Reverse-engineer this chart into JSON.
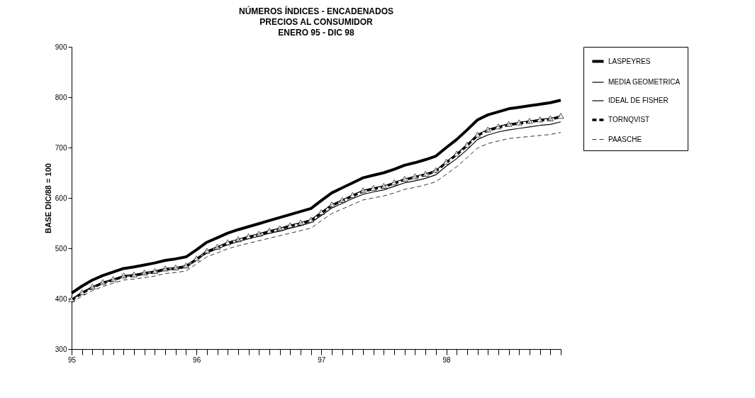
{
  "chart_data": {
    "type": "line",
    "title": "NÚMEROS ÍNDICES - ENCADENADOS\nPRECIOS AL CONSUMIDOR\nENERO 95 - DIC 98",
    "ylabel": "BASE DIC/88 = 100",
    "categories": [
      "95",
      null,
      null,
      null,
      null,
      null,
      null,
      null,
      null,
      null,
      null,
      null,
      "96",
      null,
      null,
      null,
      null,
      null,
      null,
      null,
      null,
      null,
      null,
      null,
      "97",
      null,
      null,
      null,
      null,
      null,
      null,
      null,
      null,
      null,
      null,
      null,
      "98",
      null,
      null,
      null,
      null,
      null,
      null,
      null,
      null,
      null,
      null,
      null
    ],
    "ylim": [
      300,
      900
    ],
    "yticks": [
      300,
      400,
      500,
      600,
      700,
      800,
      900
    ],
    "grid": false,
    "legend": "right",
    "series": [
      {
        "name": "LASPEYRES",
        "color": "#000000",
        "line_style": "solid",
        "marker": "none",
        "values": [
          411,
          425,
          437,
          446,
          453,
          460,
          463,
          467,
          471,
          476,
          479,
          483,
          497,
          512,
          521,
          530,
          537,
          543,
          549,
          555,
          561,
          567,
          573,
          579,
          595,
          610,
          620,
          630,
          640,
          645,
          650,
          657,
          665,
          670,
          676,
          683,
          700,
          716,
          735,
          755,
          765,
          771,
          777,
          780,
          783,
          786,
          789,
          794
        ]
      },
      {
        "name": "MEDIA GEOMETRICA",
        "color": "#000000",
        "line_style": "solid",
        "marker": "none",
        "values": [
          398,
          412,
          422,
          431,
          437,
          444,
          446,
          449,
          452,
          457,
          459,
          462,
          477,
          491,
          499,
          507,
          513,
          519,
          524,
          530,
          534,
          540,
          545,
          551,
          565,
          580,
          589,
          599,
          607,
          612,
          616,
          623,
          630,
          634,
          639,
          646,
          663,
          678,
          696,
          716,
          725,
          731,
          735,
          738,
          741,
          744,
          746,
          751
        ]
      },
      {
        "name": "IDEAL DE FISHER",
        "color": "#000000",
        "line_style": "solid",
        "marker": "triangle",
        "values": [
          399,
          413,
          424,
          433,
          439,
          446,
          448,
          452,
          455,
          460,
          462,
          466,
          480,
          495,
          503,
          512,
          518,
          524,
          529,
          535,
          540,
          546,
          551,
          557,
          572,
          587,
          596,
          606,
          615,
          620,
          624,
          631,
          638,
          643,
          648,
          655,
          672,
          688,
          706,
          726,
          736,
          742,
          747,
          750,
          753,
          756,
          758,
          763
        ]
      },
      {
        "name": "TORNQVIST",
        "color": "#000000",
        "line_style": "dashed",
        "marker": "none",
        "values": [
          397,
          411,
          422,
          431,
          437,
          444,
          446,
          450,
          453,
          458,
          460,
          464,
          478,
          493,
          501,
          510,
          516,
          522,
          527,
          533,
          538,
          544,
          549,
          555,
          570,
          585,
          594,
          604,
          613,
          618,
          622,
          629,
          636,
          641,
          646,
          653,
          670,
          686,
          704,
          724,
          734,
          740,
          745,
          748,
          751,
          754,
          756,
          761
        ]
      },
      {
        "name": "PAASCHE",
        "color": "#000000",
        "line_style": "dashed",
        "marker": "none",
        "values": [
          392,
          405,
          416,
          424,
          431,
          437,
          439,
          442,
          445,
          450,
          452,
          455,
          469,
          483,
          491,
          499,
          505,
          510,
          515,
          520,
          525,
          530,
          535,
          540,
          555,
          569,
          578,
          587,
          596,
          600,
          604,
          610,
          617,
          621,
          626,
          632,
          647,
          662,
          680,
          699,
          708,
          713,
          718,
          720,
          722,
          724,
          726,
          730
        ]
      }
    ]
  }
}
